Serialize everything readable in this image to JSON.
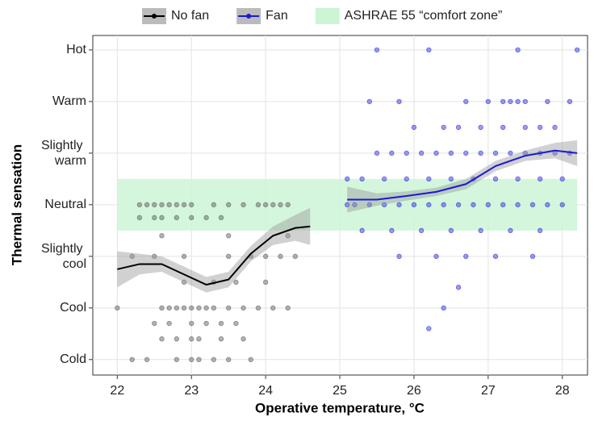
{
  "chart_data": {
    "type": "scatter",
    "xlabel": "Operative temperature, °C",
    "ylabel": "Thermal sensation",
    "xlim": [
      21.67,
      28.34
    ],
    "ylim": [
      -3.3,
      3.28
    ],
    "xticks": [
      22,
      23,
      24,
      25,
      26,
      27,
      28
    ],
    "yticks": [
      {
        "value": -3,
        "label": "Cold"
      },
      {
        "value": -2,
        "label": "Cool"
      },
      {
        "value": -1,
        "label": "Slightly cool"
      },
      {
        "value": 0,
        "label": "Neutral"
      },
      {
        "value": 1,
        "label": "Slightly warm"
      },
      {
        "value": 2,
        "label": "Warm"
      },
      {
        "value": 3,
        "label": "Hot"
      }
    ],
    "grid": true,
    "legend": "top",
    "regions": [
      {
        "name": "ASHRAE 55 “comfort zone”",
        "color": "#ccf5d6",
        "xlim": [
          22,
          28.2
        ],
        "ylim": [
          -0.5,
          0.5
        ]
      }
    ],
    "series": [
      {
        "name": "No fan",
        "color": "#000000",
        "point_color": "#555555",
        "x": [
          22.3,
          22.4,
          22.5,
          22.6,
          22.7,
          22.8,
          22.9,
          23.0,
          23.3,
          23.5,
          23.7,
          23.9,
          24.0,
          24.1,
          24.2,
          24.3,
          22.3,
          22.5,
          22.6,
          22.8,
          23.0,
          23.2,
          23.4,
          22.2,
          22.5,
          22.9,
          23.5,
          23.8,
          24.0,
          24.2,
          24.4,
          22.6,
          23.5,
          24.3,
          22.9,
          23.3,
          23.6,
          24.0,
          22.0,
          22.6,
          22.7,
          22.8,
          22.9,
          23.0,
          23.1,
          23.2,
          23.3,
          23.5,
          23.7,
          23.9,
          24.1,
          24.3,
          22.5,
          22.7,
          23.0,
          23.2,
          23.4,
          23.6,
          22.6,
          22.8,
          23.0,
          23.1,
          23.4,
          23.7,
          22.2,
          22.4,
          22.8,
          23.0,
          23.1,
          23.3,
          23.5,
          23.8
        ],
        "values": [
          0,
          0,
          0,
          0,
          0,
          0,
          0,
          0,
          0,
          0,
          0,
          0,
          0,
          0,
          0,
          0,
          -0.25,
          -0.25,
          -0.25,
          -0.25,
          -0.25,
          -0.25,
          -0.25,
          -1,
          -1,
          -1,
          -1,
          -1,
          -1,
          -1,
          -1,
          -0.6,
          -0.6,
          -0.6,
          -1.5,
          -1.5,
          -1.5,
          -1.5,
          -2,
          -2,
          -2,
          -2,
          -2,
          -2,
          -2,
          -2,
          -2,
          -2,
          -2,
          -2,
          -2,
          -2,
          -2.3,
          -2.3,
          -2.3,
          -2.3,
          -2.3,
          -2.3,
          -2.6,
          -2.6,
          -2.6,
          -2.6,
          -2.6,
          -2.6,
          -3,
          -3,
          -3,
          -3,
          -3,
          -3,
          -3,
          -3
        ],
        "smooth": {
          "x": [
            22.0,
            22.3,
            22.6,
            22.9,
            23.2,
            23.5,
            23.8,
            24.1,
            24.4,
            24.6
          ],
          "values": [
            -1.25,
            -1.15,
            -1.15,
            -1.35,
            -1.55,
            -1.45,
            -0.95,
            -0.6,
            -0.45,
            -0.42
          ],
          "lower": [
            -1.6,
            -1.35,
            -1.3,
            -1.5,
            -1.7,
            -1.6,
            -1.1,
            -0.78,
            -0.7,
            -0.78
          ],
          "upper": [
            -0.9,
            -0.95,
            -1.0,
            -1.2,
            -1.4,
            -1.3,
            -0.8,
            -0.42,
            -0.2,
            -0.06
          ]
        }
      },
      {
        "name": "Fan",
        "color": "#1a1ad6",
        "point_color": "#2222dd",
        "x": [
          25.5,
          26.2,
          27.4,
          28.2,
          25.4,
          25.8,
          26.7,
          27.0,
          27.2,
          27.3,
          27.4,
          27.5,
          27.8,
          28.1,
          26.0,
          26.4,
          26.6,
          26.9,
          27.2,
          27.5,
          27.7,
          27.9,
          25.5,
          25.7,
          25.9,
          26.1,
          26.3,
          26.5,
          26.7,
          26.9,
          27.1,
          27.3,
          27.5,
          27.7,
          27.9,
          28.1,
          25.1,
          25.3,
          25.6,
          25.9,
          26.2,
          26.5,
          26.8,
          27.1,
          27.4,
          27.7,
          28.0,
          25.1,
          25.2,
          25.4,
          25.6,
          25.8,
          26.0,
          26.2,
          26.4,
          26.6,
          26.8,
          27.0,
          27.2,
          27.4,
          27.6,
          27.8,
          28.0,
          25.3,
          25.7,
          26.1,
          26.5,
          26.9,
          27.3,
          27.7,
          25.8,
          26.3,
          26.7,
          27.1,
          27.6,
          26.6,
          26.4,
          26.2
        ],
        "values": [
          3,
          3,
          3,
          3,
          2,
          2,
          2,
          2,
          2,
          2,
          2,
          2,
          2,
          2,
          1.5,
          1.5,
          1.5,
          1.5,
          1.5,
          1.5,
          1.5,
          1.5,
          1,
          1,
          1,
          1,
          1,
          1,
          1,
          1,
          1,
          1,
          1,
          1,
          1,
          1,
          0.5,
          0.5,
          0.5,
          0.5,
          0.5,
          0.5,
          0.5,
          0.5,
          0.5,
          0.5,
          0.5,
          0,
          0,
          0,
          0,
          0,
          0,
          0,
          0,
          0,
          0,
          0,
          0,
          0,
          0,
          0,
          0,
          -0.5,
          -0.5,
          -0.5,
          -0.5,
          -0.5,
          -0.5,
          -0.5,
          -1,
          -1,
          -1,
          -1,
          -1,
          -1.6,
          -2,
          -2.4
        ],
        "smooth": {
          "x": [
            25.1,
            25.5,
            25.9,
            26.3,
            26.7,
            27.1,
            27.5,
            27.9,
            28.2
          ],
          "values": [
            0.1,
            0.1,
            0.17,
            0.25,
            0.4,
            0.75,
            0.95,
            1.05,
            1.0
          ],
          "lower": [
            -0.15,
            -0.02,
            0.08,
            0.17,
            0.3,
            0.65,
            0.85,
            0.9,
            0.75
          ],
          "upper": [
            0.35,
            0.22,
            0.26,
            0.33,
            0.5,
            0.85,
            1.05,
            1.2,
            1.25
          ]
        }
      }
    ]
  }
}
